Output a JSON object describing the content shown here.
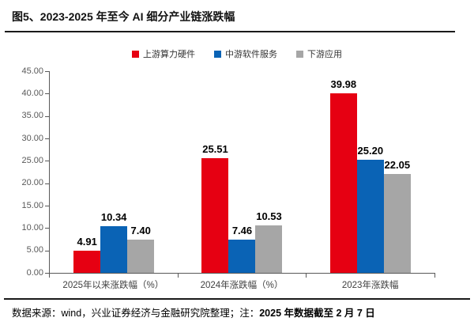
{
  "title": "图5、2023-2025 年至今 AI 细分产业链涨跌幅",
  "colors": {
    "series_red": "#e60012",
    "series_blue": "#0a63b5",
    "series_gray": "#a6a6a6",
    "axis": "#595959",
    "rule": "#1a1a1a"
  },
  "chart_data": {
    "type": "bar",
    "title": "图5、2023-2025 年至今 AI 细分产业链涨跌幅",
    "categories": [
      "2025年以来涨跌幅（%）",
      "2024年涨跌幅（%）",
      "2023年涨跌幅"
    ],
    "series": [
      {
        "name": "上游算力硬件",
        "color": "#e60012",
        "values": [
          4.91,
          25.51,
          39.98
        ]
      },
      {
        "name": "中游软件服务",
        "color": "#0a63b5",
        "values": [
          10.34,
          7.46,
          25.2
        ]
      },
      {
        "name": "下游应用",
        "color": "#a6a6a6",
        "values": [
          7.4,
          10.53,
          22.05
        ]
      }
    ],
    "ylim": [
      0,
      45
    ],
    "y_ticks": [
      "45.00",
      "40.00",
      "35.00",
      "30.00",
      "25.00",
      "20.00",
      "15.00",
      "10.00",
      "5.00",
      "0.00"
    ],
    "grid": false,
    "legend_position": "top",
    "value_labels": "shown above bars, 2 decimal places",
    "xlabel": "",
    "ylabel": ""
  },
  "footer": {
    "source": "数据来源：wind，兴业证券经济与金融研究院整理；注：",
    "note_bold": "2025 年数据截至 2 月 7 日"
  }
}
